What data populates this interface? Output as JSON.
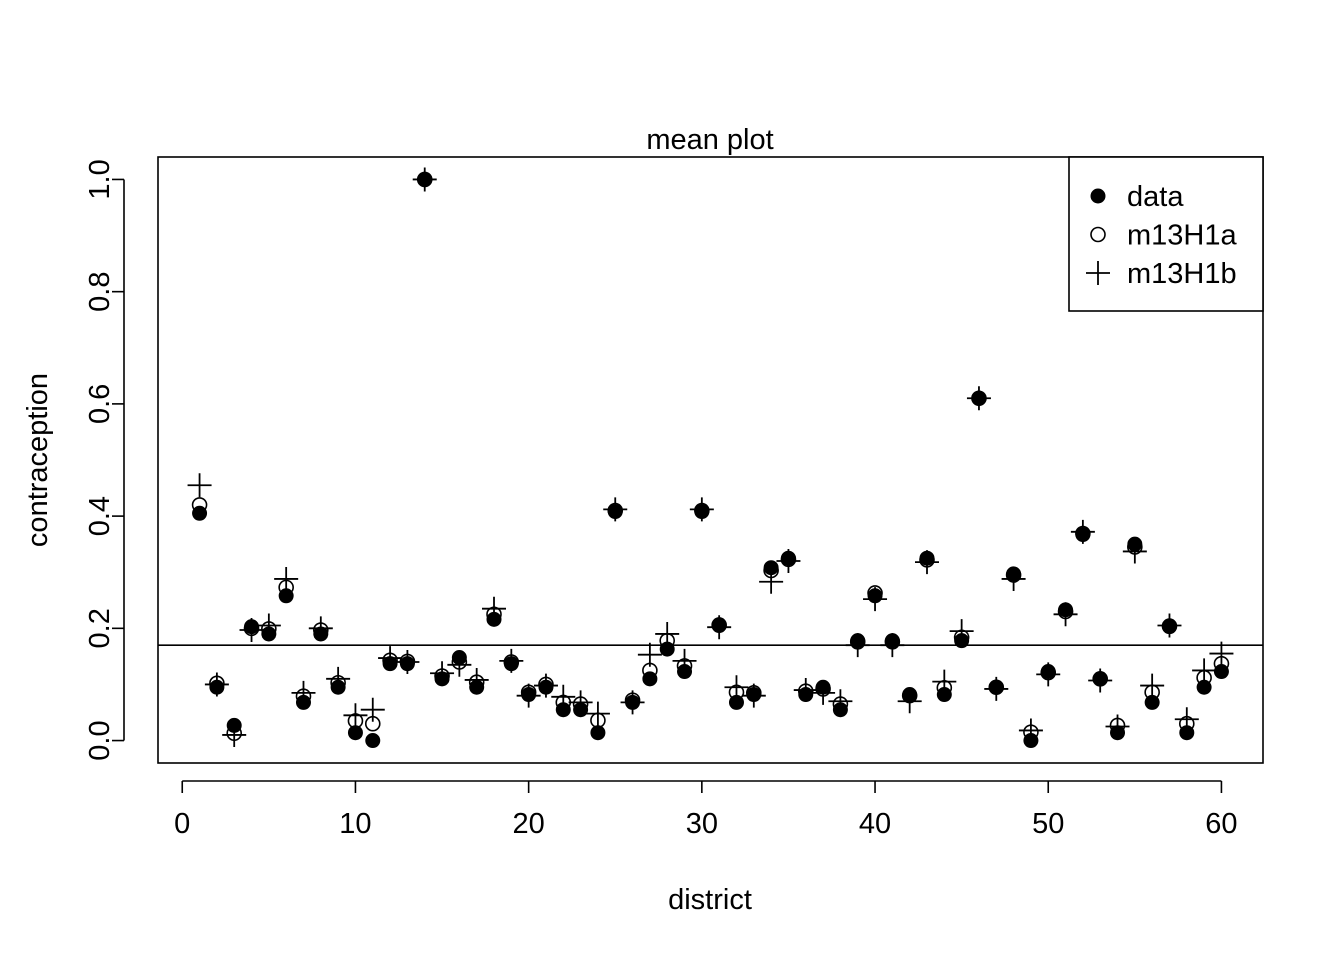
{
  "chart_data": {
    "type": "scatter",
    "title": "mean plot",
    "xlabel": "district",
    "ylabel": "contraception",
    "xlim": [
      -1.4,
      62.4
    ],
    "ylim": [
      -0.04,
      1.04
    ],
    "x_ticks": [
      0,
      10,
      20,
      30,
      40,
      50,
      60
    ],
    "y_ticks": [
      0.0,
      0.2,
      0.4,
      0.6,
      0.8,
      1.0
    ],
    "x_tick_labels": [
      "0",
      "10",
      "20",
      "30",
      "40",
      "50",
      "60"
    ],
    "y_tick_labels": [
      "0.0",
      "0.2",
      "0.4",
      "0.6",
      "0.8",
      "1.0"
    ],
    "hline": 0.17,
    "grid": false,
    "legend_position": "top-right",
    "x": [
      1,
      2,
      3,
      4,
      5,
      6,
      7,
      8,
      9,
      10,
      11,
      12,
      13,
      14,
      15,
      16,
      17,
      18,
      19,
      20,
      21,
      22,
      23,
      24,
      25,
      26,
      27,
      28,
      29,
      30,
      31,
      32,
      33,
      34,
      35,
      36,
      37,
      38,
      39,
      40,
      41,
      42,
      43,
      44,
      45,
      46,
      47,
      48,
      49,
      50,
      51,
      52,
      53,
      54,
      55,
      56,
      57,
      58,
      59,
      60
    ],
    "series": [
      {
        "name": "data",
        "marker": "filled-circle",
        "values": [
          0.405,
          0.095,
          0.027,
          0.203,
          0.19,
          0.258,
          0.068,
          0.19,
          0.095,
          0.014,
          0.0,
          0.137,
          0.137,
          1.0,
          0.11,
          0.148,
          0.095,
          0.216,
          0.137,
          0.082,
          0.095,
          0.055,
          0.055,
          0.014,
          0.408,
          0.068,
          0.11,
          0.163,
          0.123,
          0.408,
          0.205,
          0.068,
          0.082,
          0.308,
          0.325,
          0.082,
          0.095,
          0.055,
          0.178,
          0.258,
          0.178,
          0.082,
          0.325,
          0.082,
          0.178,
          0.61,
          0.095,
          0.297,
          0.0,
          0.123,
          0.233,
          0.367,
          0.11,
          0.014,
          0.35,
          0.068,
          0.203,
          0.014,
          0.095,
          0.123
        ]
      },
      {
        "name": "m13H1a",
        "marker": "open-circle",
        "values": [
          0.42,
          0.102,
          0.013,
          0.2,
          0.199,
          0.273,
          0.079,
          0.197,
          0.103,
          0.035,
          0.03,
          0.143,
          0.141,
          1.0,
          0.115,
          0.14,
          0.104,
          0.225,
          0.14,
          0.086,
          0.1,
          0.068,
          0.065,
          0.036,
          0.41,
          0.072,
          0.125,
          0.178,
          0.133,
          0.41,
          0.206,
          0.086,
          0.085,
          0.303,
          0.323,
          0.088,
          0.092,
          0.065,
          0.176,
          0.263,
          0.176,
          0.08,
          0.322,
          0.094,
          0.184,
          0.61,
          0.095,
          0.295,
          0.015,
          0.121,
          0.23,
          0.369,
          0.11,
          0.027,
          0.345,
          0.086,
          0.204,
          0.03,
          0.112,
          0.137
        ]
      },
      {
        "name": "m13H1b",
        "marker": "plus",
        "values": [
          0.455,
          0.1,
          0.01,
          0.197,
          0.205,
          0.288,
          0.085,
          0.2,
          0.11,
          0.045,
          0.055,
          0.147,
          0.14,
          1.0,
          0.12,
          0.135,
          0.108,
          0.235,
          0.142,
          0.08,
          0.098,
          0.078,
          0.068,
          0.048,
          0.412,
          0.068,
          0.153,
          0.19,
          0.142,
          0.412,
          0.202,
          0.095,
          0.08,
          0.283,
          0.32,
          0.09,
          0.085,
          0.07,
          0.17,
          0.252,
          0.17,
          0.07,
          0.318,
          0.105,
          0.195,
          0.61,
          0.092,
          0.288,
          0.018,
          0.118,
          0.225,
          0.372,
          0.107,
          0.025,
          0.337,
          0.098,
          0.205,
          0.038,
          0.125,
          0.155
        ]
      }
    ]
  }
}
